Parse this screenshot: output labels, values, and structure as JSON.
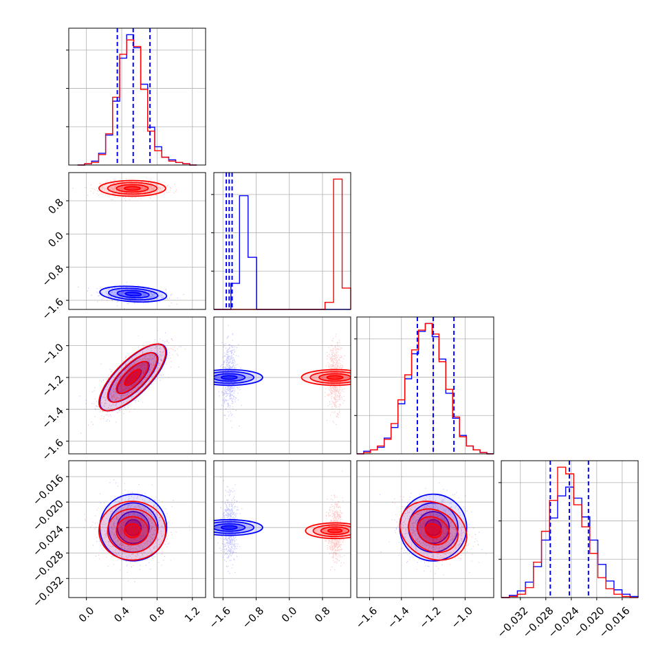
{
  "colors": {
    "series_a": "#0000ff",
    "series_b": "#ff0000",
    "grid": "#b0b0b0",
    "frame": "#000000"
  },
  "chart_data": {
    "type": "corner",
    "grid": true,
    "parameters": [
      {
        "id": "p0",
        "range": [
          -0.2,
          1.35
        ],
        "ticks": [
          0.0,
          0.4,
          0.8,
          1.2
        ],
        "tick_labels": [
          "0.0",
          "0.4",
          "0.8",
          "1.2"
        ]
      },
      {
        "id": "p1",
        "range": [
          -1.82,
          1.48
        ],
        "ticks": [
          -1.6,
          -0.8,
          0.0,
          0.8
        ],
        "tick_labels": [
          "−1.6",
          "−0.8",
          "0.0",
          "0.8"
        ]
      },
      {
        "id": "p2",
        "range": [
          -1.68,
          -0.82
        ],
        "ticks": [
          -1.6,
          -1.4,
          -1.2,
          -1.0
        ],
        "tick_labels": [
          "−1.6",
          "−1.4",
          "−1.2",
          "−1.0"
        ]
      },
      {
        "id": "p3",
        "range": [
          -0.035,
          -0.0135
        ],
        "ticks": [
          -0.032,
          -0.028,
          -0.024,
          -0.02,
          -0.016
        ],
        "tick_labels": [
          "−0.032",
          "−0.028",
          "−0.024",
          "−0.020",
          "−0.016"
        ]
      }
    ],
    "series": [
      {
        "color": "blue",
        "means": [
          0.53,
          -1.45,
          -1.2,
          -0.024
        ],
        "sds": [
          0.18,
          0.09,
          0.1,
          0.0025
        ],
        "corr": [
          [
            0,
            1,
            -0.25
          ],
          [
            0,
            2,
            0.75
          ]
        ]
      },
      {
        "color": "red",
        "means": [
          0.52,
          1.1,
          -1.2,
          -0.0245
        ],
        "sds": [
          0.18,
          0.09,
          0.1,
          0.0022
        ],
        "corr": [
          [
            0,
            2,
            0.75
          ],
          [
            2,
            3,
            -0.2
          ]
        ]
      }
    ],
    "quantile_lines": {
      "color": "blue",
      "values": [
        [
          0.35,
          0.53,
          0.72
        ],
        [
          -1.52,
          -1.45,
          -1.38
        ],
        [
          -1.3,
          -1.2,
          -1.07
        ],
        [
          -0.0273,
          -0.0243,
          -0.0213
        ]
      ]
    },
    "histograms": [
      {
        "bins": [
          -0.1,
          1.25
        ],
        "blue": [
          0,
          1,
          3,
          9,
          23,
          49,
          82,
          100,
          90,
          62,
          29,
          14,
          6,
          4,
          2,
          1,
          0
        ],
        "red": [
          0,
          1,
          2,
          8,
          24,
          52,
          85,
          96,
          91,
          58,
          26,
          11,
          6,
          3,
          2,
          1,
          0
        ]
      },
      {
        "bins": [
          -1.82,
          1.48
        ],
        "blue": [
          0,
          0,
          11,
          48,
          22,
          0,
          0,
          0,
          0,
          0,
          0,
          0,
          0,
          0,
          0,
          0
        ],
        "red": [
          0,
          0,
          0,
          0,
          0,
          0,
          0,
          0,
          0,
          0,
          0,
          0,
          0,
          3,
          55,
          9
        ]
      },
      {
        "bins": [
          -1.68,
          -0.82
        ],
        "blue": [
          0,
          2,
          3,
          5,
          12,
          20,
          38,
          57,
          76,
          93,
          99,
          89,
          72,
          46,
          27,
          14,
          6,
          3,
          1,
          0
        ],
        "red": [
          0,
          1,
          3,
          6,
          11,
          23,
          41,
          60,
          79,
          94,
          99,
          91,
          70,
          49,
          28,
          13,
          6,
          3,
          1,
          0
        ]
      },
      {
        "bins": [
          -0.035,
          -0.0135
        ],
        "blue": [
          0,
          2,
          6,
          14,
          28,
          52,
          72,
          92,
          100,
          90,
          73,
          52,
          30,
          15,
          7,
          3,
          1
        ],
        "red": [
          0,
          1,
          3,
          9,
          32,
          60,
          88,
          118,
          112,
          84,
          64,
          40,
          18,
          8,
          3,
          1,
          0
        ]
      }
    ]
  }
}
